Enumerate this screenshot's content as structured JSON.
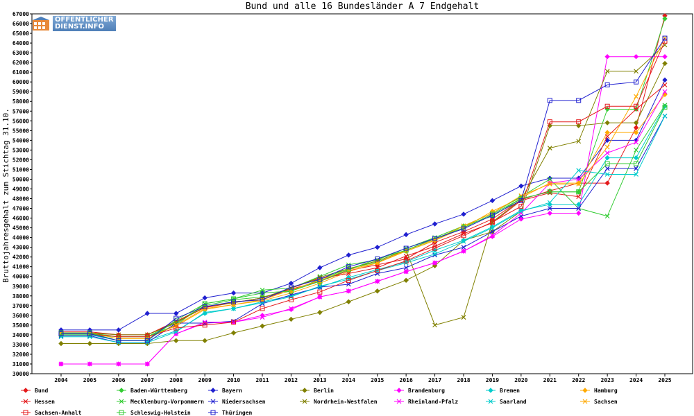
{
  "logo": {
    "line1": "ÖFFENTLICHER",
    "line2": "DIENST.INFO",
    "icon": "building-icon"
  },
  "chart_data": {
    "type": "line",
    "title": "Bund und alle 16 Bundesländer A 7 Endgehalt",
    "xlabel": "",
    "ylabel": "Bruttojahresgehalt zum Stichtag 31.10.",
    "ylim": [
      30000,
      67000
    ],
    "ytick_step": 1000,
    "grid": false,
    "legend_position": "bottom",
    "x": [
      "2004",
      "2005",
      "2006",
      "2007",
      "2008",
      "2009",
      "2010",
      "2011",
      "2012",
      "2013",
      "2014",
      "2015",
      "2016",
      "2017",
      "2018",
      "2019",
      "2020",
      "2021",
      "2022",
      "2023",
      "2024",
      "2025"
    ],
    "series": [
      {
        "name": "Bund",
        "color": "#e41a1c",
        "marker": "diamond",
        "values": [
          34300,
          34300,
          34000,
          34000,
          35300,
          36800,
          37300,
          37800,
          38700,
          39500,
          40600,
          41200,
          41800,
          43500,
          44600,
          45900,
          47900,
          48800,
          49600,
          49600,
          55300,
          66800
        ]
      },
      {
        "name": "Baden-Württemberg",
        "color": "#33cc33",
        "marker": "diamond",
        "values": [
          34200,
          34200,
          33800,
          33800,
          35300,
          37000,
          37600,
          37900,
          38500,
          39700,
          40800,
          41500,
          42600,
          43700,
          45200,
          46200,
          48000,
          48700,
          48700,
          57200,
          57200,
          66500
        ]
      },
      {
        "name": "Bayern",
        "color": "#2020d0",
        "marker": "diamond",
        "values": [
          34500,
          34500,
          34500,
          36200,
          36200,
          37800,
          38300,
          38300,
          39300,
          40900,
          42200,
          43000,
          44300,
          45400,
          46400,
          47800,
          49300,
          50100,
          50100,
          54000,
          54000,
          60200
        ]
      },
      {
        "name": "Berlin",
        "color": "#808000",
        "marker": "diamond",
        "values": [
          33100,
          33100,
          33100,
          33100,
          33400,
          33400,
          34200,
          34900,
          35600,
          36300,
          37400,
          38500,
          39600,
          41100,
          43700,
          44600,
          46700,
          55500,
          55500,
          55800,
          55800,
          61900
        ]
      },
      {
        "name": "Brandenburg",
        "color": "#ff00ff",
        "marker": "diamond",
        "values": [
          31000,
          31000,
          31000,
          31000,
          34100,
          35200,
          35300,
          36000,
          36600,
          37900,
          38500,
          39500,
          40500,
          41400,
          42600,
          44100,
          45900,
          46500,
          46500,
          62600,
          62600,
          62600
        ]
      },
      {
        "name": "Bremen",
        "color": "#00cccc",
        "marker": "diamond",
        "values": [
          34000,
          34000,
          33400,
          33400,
          34400,
          36200,
          36700,
          37400,
          38000,
          38900,
          39900,
          40700,
          41500,
          42700,
          43700,
          45100,
          46800,
          47400,
          47400,
          52200,
          52200,
          57500
        ]
      },
      {
        "name": "Hamburg",
        "color": "#ffaa00",
        "marker": "diamond",
        "values": [
          34100,
          34100,
          33800,
          33800,
          34900,
          36600,
          37100,
          37500,
          38300,
          39300,
          40500,
          41400,
          42600,
          43700,
          45000,
          46700,
          48100,
          49600,
          49600,
          54800,
          54800,
          58700
        ]
      },
      {
        "name": "Hessen",
        "color": "#e41a1c",
        "marker": "x",
        "values": [
          34200,
          34200,
          34000,
          34000,
          35400,
          36800,
          37400,
          37600,
          38800,
          39800,
          40300,
          40900,
          42100,
          43100,
          44400,
          45500,
          47800,
          48600,
          48200,
          54400,
          57200,
          59700
        ]
      },
      {
        "name": "Mecklenburg-Vorpommern",
        "color": "#33cc33",
        "marker": "x",
        "values": [
          34000,
          34000,
          33800,
          33800,
          35000,
          37200,
          37700,
          38600,
          38800,
          40000,
          41200,
          41700,
          42900,
          44000,
          45200,
          46500,
          48200,
          50000,
          47000,
          46200,
          53000,
          57600
        ]
      },
      {
        "name": "Niedersachsen",
        "color": "#2020d0",
        "marker": "x",
        "values": [
          33900,
          33900,
          33200,
          33200,
          35200,
          35200,
          35400,
          37200,
          38100,
          38900,
          39200,
          40300,
          40900,
          42200,
          43000,
          44600,
          46200,
          47000,
          47000,
          51100,
          51100,
          56500
        ]
      },
      {
        "name": "Nordrhein-Westfalen",
        "color": "#808000",
        "marker": "x",
        "values": [
          34200,
          34200,
          34000,
          34000,
          35200,
          36900,
          37300,
          37800,
          38800,
          39900,
          40800,
          41600,
          42700,
          35000,
          35800,
          45600,
          47900,
          53200,
          53900,
          61100,
          61100,
          63800
        ]
      },
      {
        "name": "Rheinland-Pfalz",
        "color": "#ff00ff",
        "marker": "x",
        "values": [
          31000,
          31000,
          31000,
          31000,
          34100,
          35300,
          35300,
          35800,
          36700,
          37900,
          38500,
          39500,
          40500,
          41400,
          42600,
          44200,
          46500,
          49600,
          50000,
          52700,
          53800,
          59000
        ]
      },
      {
        "name": "Saarland",
        "color": "#00cccc",
        "marker": "x",
        "values": [
          33800,
          33800,
          33200,
          33200,
          34300,
          36300,
          36700,
          37300,
          37900,
          39000,
          39700,
          40600,
          41400,
          42300,
          43600,
          45000,
          46700,
          47600,
          50900,
          50500,
          50500,
          56500
        ]
      },
      {
        "name": "Sachsen",
        "color": "#ffaa00",
        "marker": "x",
        "values": [
          34200,
          34200,
          33600,
          33600,
          35000,
          36700,
          37100,
          37600,
          38600,
          39600,
          40700,
          41400,
          42700,
          43800,
          45200,
          46500,
          48300,
          49500,
          49500,
          53300,
          58500,
          64500
        ]
      },
      {
        "name": "Sachsen-Anhalt",
        "color": "#e41a1c",
        "marker": "square",
        "values": [
          34100,
          34100,
          33800,
          33800,
          34700,
          35000,
          35300,
          36700,
          37600,
          38400,
          39600,
          40600,
          41600,
          42900,
          44200,
          45600,
          47200,
          55900,
          55900,
          57500,
          57500,
          64200
        ]
      },
      {
        "name": "Schleswig-Holstein",
        "color": "#33cc33",
        "marker": "square",
        "values": [
          34200,
          34200,
          33400,
          33400,
          35500,
          37200,
          37700,
          38300,
          38500,
          39500,
          40700,
          41800,
          42700,
          43900,
          45000,
          46400,
          48000,
          48700,
          48700,
          51600,
          51600,
          57400
        ]
      },
      {
        "name": "Thüringen",
        "color": "#2020d0",
        "marker": "square",
        "values": [
          34100,
          34100,
          33400,
          33400,
          35700,
          36900,
          37400,
          37600,
          38900,
          39700,
          41000,
          41800,
          42900,
          43900,
          44900,
          46300,
          47800,
          58100,
          58100,
          59700,
          60000,
          64500
        ]
      }
    ]
  }
}
